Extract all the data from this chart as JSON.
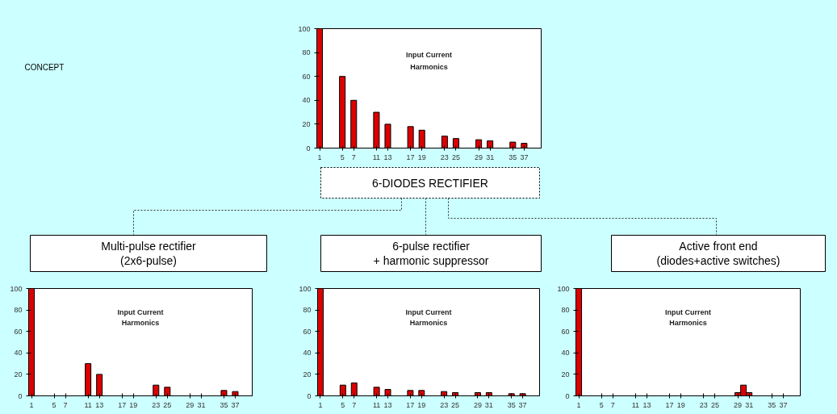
{
  "chart_data": [
    {
      "type": "bar",
      "title": "Input Current Harmonics",
      "x": [
        1,
        5,
        7,
        11,
        13,
        17,
        19,
        23,
        25,
        29,
        31,
        35,
        37
      ],
      "values": [
        100,
        60,
        40,
        30,
        20,
        18,
        15,
        10,
        8,
        7,
        6,
        5,
        4
      ],
      "color": "#dd0000",
      "xlim": [
        0.5,
        40
      ],
      "xticks": [
        1,
        5,
        7,
        11,
        13,
        17,
        19,
        23,
        25,
        29,
        31,
        35,
        37
      ],
      "ylim": [
        0,
        100
      ],
      "yticks": [
        0,
        20,
        40,
        60,
        80,
        100
      ],
      "grid": false,
      "annotations": [
        "CONCEPT",
        "6-DIODES RECTIFIER"
      ]
    },
    {
      "type": "bar",
      "title": "Input Current Harmonics",
      "x": [
        1,
        11,
        13,
        23,
        25,
        35,
        37
      ],
      "values": [
        100,
        30,
        20,
        10,
        8,
        5,
        4
      ],
      "color": "#dd0000",
      "xlim": [
        0.5,
        40
      ],
      "xticks": [
        1,
        5,
        7,
        11,
        13,
        17,
        19,
        23,
        25,
        29,
        31,
        35,
        37
      ],
      "ylim": [
        0,
        100
      ],
      "yticks": [
        0,
        20,
        40,
        60,
        80,
        100
      ],
      "grid": false,
      "annotations": [
        "Multi-pulse rectifier\n(2x6-pulse)"
      ]
    },
    {
      "type": "bar",
      "title": "Input Current Harmonics",
      "x": [
        1,
        5,
        7,
        11,
        13,
        17,
        19,
        23,
        25,
        29,
        31,
        35,
        37
      ],
      "values": [
        100,
        10,
        12,
        8,
        6,
        5,
        5,
        4,
        3,
        3,
        3,
        2,
        2
      ],
      "color": "#dd0000",
      "xlim": [
        0.5,
        40
      ],
      "xticks": [
        1,
        5,
        7,
        11,
        13,
        17,
        19,
        23,
        25,
        29,
        31,
        35,
        37
      ],
      "ylim": [
        0,
        100
      ],
      "yticks": [
        0,
        20,
        40,
        60,
        80,
        100
      ],
      "grid": false,
      "annotations": [
        "6-pulse rectifier\n+ harmonic suppressor"
      ]
    },
    {
      "type": "bar",
      "title": "Input Current Harmonics",
      "x": [
        1,
        29,
        30,
        31
      ],
      "values": [
        100,
        3,
        10,
        3
      ],
      "color": "#dd0000",
      "xlim": [
        0.5,
        40
      ],
      "xticks": [
        1,
        5,
        7,
        11,
        13,
        17,
        19,
        23,
        25,
        29,
        31,
        35,
        37
      ],
      "ylim": [
        0,
        100
      ],
      "yticks": [
        0,
        20,
        40,
        60,
        80,
        100
      ],
      "grid": false,
      "annotations": [
        "Active front end\n(diodes+active switches)"
      ]
    }
  ]
}
